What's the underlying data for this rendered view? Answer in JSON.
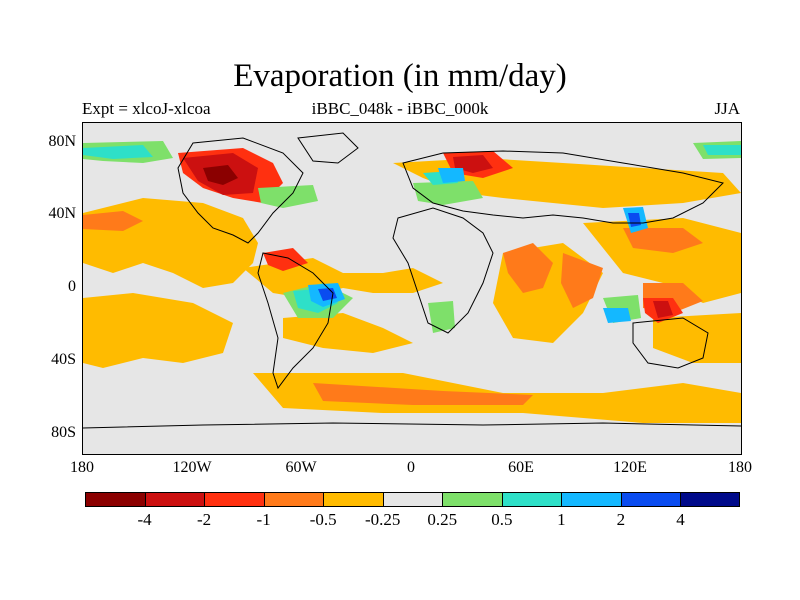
{
  "title": "Evaporation (in mm/day)",
  "subtitle_left": "Expt = xlcoJ-xlcoa",
  "subtitle_center": "iBBC_048k - iBBC_000k",
  "subtitle_right": "JJA",
  "lat_ticks": [
    "80N",
    "40N",
    "0",
    "40S",
    "80S"
  ],
  "lon_ticks": [
    "180",
    "120W",
    "60W",
    "0",
    "60E",
    "120E",
    "180"
  ],
  "colorbar": {
    "colors": [
      "#8b0000",
      "#cc1010",
      "#ff3010",
      "#ff7a1a",
      "#ffbb00",
      "#e6e6e6",
      "#7ee06a",
      "#2ee0c8",
      "#14b8ff",
      "#0a4cf0",
      "#000a8a"
    ],
    "labels": [
      "-4",
      "-2",
      "-1",
      "-0.5",
      "-0.25",
      "0.25",
      "0.5",
      "1",
      "2",
      "4"
    ]
  },
  "legend_colors": {
    "background": "#e6e6e6",
    "land_outline": "#000000"
  }
}
